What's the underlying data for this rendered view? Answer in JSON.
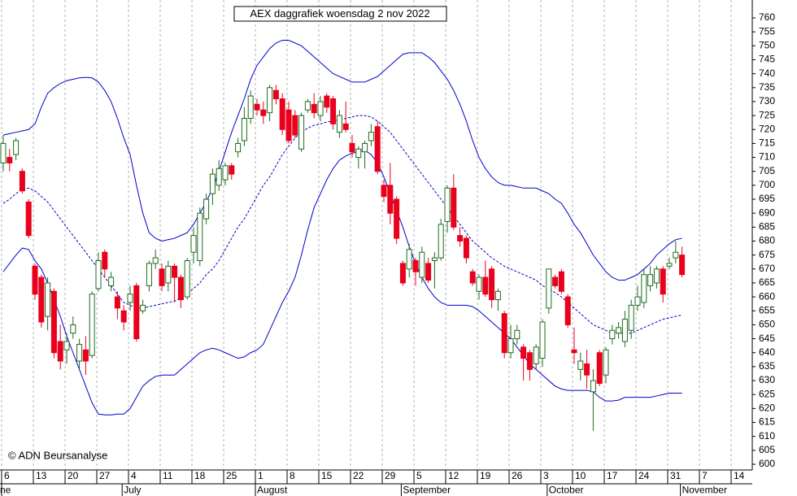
{
  "chart_data": {
    "type": "candlestick",
    "title": "AEX daggrafiek woensdag 2 nov 2022",
    "credit": "© ADN Beursanalyse",
    "categories": [
      "6",
      null,
      null,
      null,
      null,
      "13",
      null,
      null,
      null,
      null,
      "20",
      null,
      null,
      null,
      null,
      "27",
      null,
      null,
      null,
      null,
      "4",
      null,
      null,
      null,
      null,
      "11",
      null,
      null,
      null,
      null,
      "18",
      null,
      null,
      null,
      null,
      "25",
      null,
      null,
      null,
      null,
      "1",
      null,
      null,
      null,
      null,
      "8",
      null,
      null,
      null,
      null,
      "15",
      null,
      null,
      null,
      null,
      "22",
      null,
      null,
      null,
      null,
      "29",
      null,
      null,
      null,
      null,
      "5",
      null,
      null,
      null,
      null,
      "12",
      null,
      null,
      null,
      null,
      "19",
      null,
      null,
      null,
      null,
      "26",
      null,
      null,
      null,
      null,
      "3",
      null,
      null,
      null,
      null,
      "10",
      null,
      null,
      null,
      null,
      "17",
      null,
      null,
      null,
      null,
      "24",
      null,
      null,
      null,
      null,
      "31",
      null,
      null,
      null,
      null,
      "7",
      null,
      null,
      null,
      null,
      "14"
    ],
    "months": [
      "ne",
      null,
      null,
      null,
      null,
      null,
      null,
      null,
      null,
      null,
      null,
      null,
      null,
      null,
      null,
      null,
      null,
      null,
      null,
      "July",
      null,
      null,
      null,
      null,
      null,
      null,
      null,
      null,
      null,
      null,
      null,
      null,
      null,
      null,
      null,
      null,
      null,
      null,
      null,
      null,
      "August",
      null,
      null,
      null,
      null,
      null,
      null,
      null,
      null,
      null,
      null,
      null,
      null,
      null,
      null,
      null,
      null,
      null,
      null,
      null,
      null,
      null,
      null,
      "September",
      null,
      null,
      null,
      null,
      null,
      null,
      null,
      null,
      null,
      null,
      null,
      null,
      null,
      null,
      null,
      null,
      null,
      null,
      null,
      null,
      null,
      null,
      "October",
      null,
      null,
      null,
      null,
      null,
      null,
      null,
      null,
      null,
      null,
      null,
      null,
      null,
      null,
      null,
      null,
      null,
      null,
      null,
      null,
      "November",
      null,
      null,
      null,
      null,
      null,
      null,
      null,
      null,
      null
    ],
    "candles": {
      "up_color": "#ffffff",
      "down_color": "#e8001c",
      "outline_color": "#1e6b1e",
      "open": [
        708,
        710,
        711,
        705,
        694,
        671,
        667,
        653,
        662,
        644,
        641,
        647,
        637,
        641,
        639,
        663,
        676,
        664,
        660,
        655,
        658,
        664,
        655,
        664,
        672,
        670,
        665,
        671,
        667,
        660,
        676,
        673,
        688,
        697,
        700,
        702,
        707,
        712,
        716,
        724,
        729,
        727,
        726,
        734,
        731,
        727,
        725,
        713,
        727,
        729,
        725,
        732,
        731,
        719,
        722,
        715,
        710,
        712,
        716,
        721,
        700,
        700,
        695,
        672,
        670,
        673,
        667,
        672,
        673,
        674,
        687,
        699,
        682,
        681,
        669,
        662,
        667,
        670,
        659,
        654,
        640,
        645,
        642,
        640,
        636,
        638,
        656,
        667,
        669,
        660,
        641,
        634,
        636,
        626,
        640,
        632,
        645,
        647,
        644,
        648,
        657,
        658,
        664,
        665,
        670,
        671,
        674,
        675,
        null,
        null,
        null,
        null,
        null,
        null,
        null,
        null
      ],
      "high": [
        718,
        713,
        717,
        706,
        695,
        672,
        668,
        667,
        663,
        650,
        647,
        653,
        645,
        646,
        662,
        676,
        677,
        669,
        662,
        657,
        664,
        665,
        659,
        673,
        677,
        672,
        673,
        672,
        668,
        674,
        685,
        692,
        697,
        706,
        709,
        708,
        708,
        717,
        728,
        734,
        731,
        730,
        736,
        736,
        733,
        730,
        727,
        726,
        731,
        733,
        732,
        733,
        732,
        727,
        730,
        718,
        714,
        716,
        722,
        723,
        702,
        708,
        696,
        673,
        679,
        674,
        678,
        674,
        676,
        688,
        700,
        704,
        685,
        682,
        670,
        668,
        673,
        671,
        663,
        655,
        650,
        650,
        643,
        641,
        643,
        652,
        670,
        668,
        670,
        661,
        649,
        640,
        641,
        634,
        641,
        642,
        650,
        651,
        655,
        659,
        664,
        670,
        671,
        671,
        671,
        674,
        680,
        678,
        null,
        null,
        null,
        null,
        null,
        null,
        null,
        null
      ],
      "low": [
        705,
        705,
        709,
        697,
        681,
        659,
        649,
        648,
        638,
        634,
        636,
        645,
        634,
        632,
        638,
        662,
        667,
        662,
        652,
        648,
        655,
        644,
        654,
        662,
        670,
        662,
        662,
        658,
        656,
        659,
        672,
        671,
        686,
        693,
        698,
        700,
        702,
        710,
        714,
        722,
        725,
        722,
        723,
        729,
        718,
        715,
        717,
        712,
        726,
        724,
        723,
        726,
        720,
        717,
        719,
        710,
        706,
        706,
        714,
        704,
        694,
        686,
        679,
        664,
        667,
        664,
        665,
        665,
        663,
        673,
        683,
        684,
        678,
        672,
        664,
        659,
        660,
        656,
        655,
        638,
        638,
        643,
        630,
        630,
        634,
        635,
        654,
        663,
        661,
        649,
        636,
        630,
        627,
        612,
        628,
        629,
        643,
        645,
        642,
        645,
        655,
        656,
        662,
        663,
        658,
        670,
        672,
        667,
        null,
        null,
        null,
        null,
        null,
        null,
        null,
        null
      ],
      "close": [
        715,
        708,
        716,
        698,
        682,
        661,
        651,
        665,
        640,
        637,
        644,
        650,
        643,
        637,
        661,
        673,
        670,
        667,
        656,
        651,
        661,
        645,
        657,
        672,
        674,
        664,
        671,
        667,
        659,
        673,
        682,
        690,
        695,
        704,
        706,
        707,
        704,
        715,
        724,
        732,
        727,
        725,
        735,
        731,
        720,
        716,
        718,
        725,
        730,
        726,
        730,
        728,
        722,
        725,
        720,
        712,
        713,
        715,
        719,
        705,
        696,
        690,
        681,
        665,
        677,
        669,
        676,
        666,
        674,
        686,
        699,
        685,
        680,
        674,
        665,
        667,
        661,
        659,
        662,
        640,
        645,
        648,
        638,
        634,
        642,
        651,
        670,
        664,
        662,
        650,
        640,
        637,
        632,
        630,
        629,
        641,
        648,
        649,
        652,
        657,
        660,
        668,
        668,
        670,
        661,
        672,
        676,
        668,
        null,
        null,
        null,
        null,
        null,
        null,
        null,
        null
      ]
    },
    "bands": [
      {
        "color": "#0000cc",
        "dashed": false,
        "values": [
          718,
          718.5,
          719,
          719.5,
          720,
          722,
          728,
          733,
          735,
          736.5,
          737.5,
          738,
          738.5,
          738.7,
          738.5,
          737,
          734,
          730,
          724,
          717,
          711,
          700,
          690,
          683,
          681,
          680,
          680.5,
          681,
          682,
          683,
          686,
          690,
          694,
          699,
          705,
          712,
          719,
          725,
          731,
          738,
          743,
          746,
          749,
          751,
          752,
          752,
          751,
          750,
          748,
          746,
          744,
          742,
          740,
          739,
          738,
          737,
          737,
          737,
          738,
          739,
          741,
          743,
          745,
          747,
          747.5,
          747.5,
          747.5,
          746,
          744,
          741,
          738,
          734,
          729,
          723,
          716,
          710,
          706,
          703,
          701,
          700,
          700,
          699.5,
          699,
          699,
          699,
          698,
          697,
          695,
          693.5,
          690,
          686,
          683,
          679,
          675,
          672,
          669,
          667,
          666,
          666,
          667,
          668,
          670,
          672,
          675,
          677,
          679,
          680.5,
          681,
          null,
          null,
          null,
          null,
          null,
          null,
          null,
          null
        ]
      },
      {
        "color": "#0000cc",
        "dashed": true,
        "values": [
          693.5,
          695,
          697,
          698.5,
          699,
          698,
          696,
          694,
          691,
          688,
          685,
          682,
          679,
          676,
          673,
          670,
          667,
          664,
          661,
          658,
          657,
          656,
          656,
          656.5,
          657,
          657.5,
          658,
          658.5,
          659.5,
          661,
          663,
          665,
          668,
          670,
          673,
          677,
          681,
          685,
          688,
          692,
          696,
          700,
          703,
          707,
          711,
          714,
          717,
          719,
          720.5,
          721.5,
          722,
          722.7,
          723,
          723.5,
          724,
          724.5,
          725,
          725,
          724.5,
          723,
          721,
          719,
          716,
          713,
          710,
          707,
          704,
          701,
          698,
          695,
          692,
          689,
          686,
          683,
          680,
          678,
          676,
          674,
          672.5,
          671,
          670,
          669,
          668,
          667,
          666,
          664,
          663,
          661.5,
          660,
          658,
          656,
          654,
          652,
          650,
          649,
          648,
          647,
          647,
          647,
          647,
          648,
          649,
          650,
          651,
          652,
          652.5,
          653,
          653.5,
          null,
          null,
          null,
          null,
          null,
          null,
          null,
          null
        ]
      },
      {
        "color": "#0000cc",
        "dashed": false,
        "values": [
          669,
          672,
          675,
          677.5,
          677,
          673,
          670,
          665,
          659,
          653,
          646,
          640,
          634,
          628,
          622,
          618,
          617.7,
          617.7,
          618,
          618,
          620,
          624,
          628,
          630,
          631.5,
          632,
          632,
          632,
          634,
          636,
          638,
          640,
          641,
          641.6,
          641,
          640,
          639,
          638,
          638.5,
          640,
          641,
          643,
          648,
          653,
          658,
          662,
          667,
          675,
          684,
          692,
          697,
          702,
          706,
          709,
          710.5,
          711.5,
          712,
          712.5,
          711,
          708,
          703,
          697,
          691,
          685,
          678,
          672,
          667,
          663,
          660,
          658,
          657,
          657,
          657,
          657,
          656.5,
          655,
          653,
          651,
          649,
          647,
          645,
          642,
          639,
          636,
          634,
          632,
          630,
          628,
          627,
          626.5,
          626.5,
          626.5,
          626.5,
          626,
          624,
          622.7,
          622.7,
          623,
          624,
          624,
          624,
          624,
          624,
          624.5,
          625,
          625.5,
          625.5,
          625.5,
          null,
          null,
          null,
          null,
          null,
          null,
          null,
          null
        ]
      }
    ],
    "ylim": [
      600,
      760
    ],
    "yticks": [
      600,
      605,
      610,
      615,
      620,
      625,
      630,
      635,
      640,
      645,
      650,
      655,
      660,
      665,
      670,
      675,
      680,
      685,
      690,
      695,
      700,
      705,
      710,
      715,
      720,
      725,
      730,
      735,
      740,
      745,
      750,
      755,
      760
    ],
    "grid": true
  }
}
